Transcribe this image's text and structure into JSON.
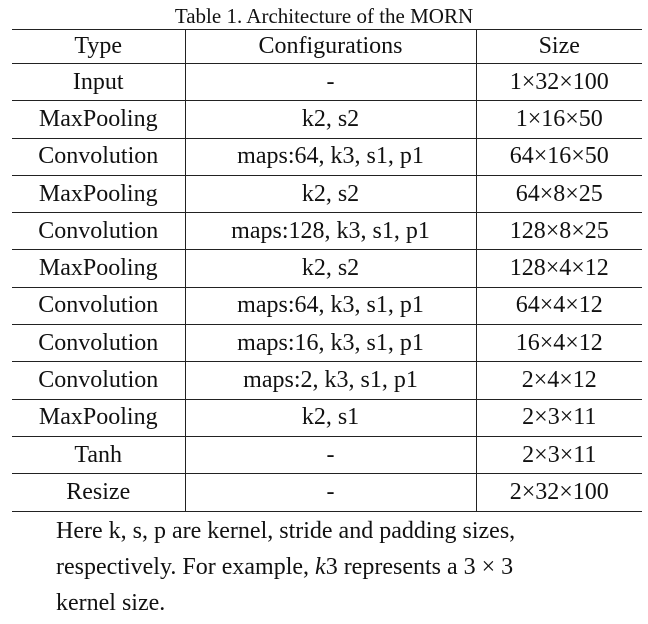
{
  "caption": "Table 1. Architecture of the MORN",
  "columns": [
    "Type",
    "Configurations",
    "Size"
  ],
  "rows": [
    {
      "type": "Input",
      "config": "-",
      "size": "1×32×100"
    },
    {
      "type": "MaxPooling",
      "config": "k2, s2",
      "size": "1×16×50"
    },
    {
      "type": "Convolution",
      "config": "maps:64, k3, s1, p1",
      "size": "64×16×50"
    },
    {
      "type": "MaxPooling",
      "config": "k2, s2",
      "size": "64×8×25"
    },
    {
      "type": "Convolution",
      "config": "maps:128, k3, s1, p1",
      "size": "128×8×25"
    },
    {
      "type": "MaxPooling",
      "config": "k2, s2",
      "size": "128×4×12"
    },
    {
      "type": "Convolution",
      "config": "maps:64, k3, s1, p1",
      "size": "64×4×12"
    },
    {
      "type": "Convolution",
      "config": "maps:16, k3, s1, p1",
      "size": "16×4×12"
    },
    {
      "type": "Convolution",
      "config": "maps:2, k3, s1, p1",
      "size": "2×4×12"
    },
    {
      "type": "MaxPooling",
      "config": "k2, s1",
      "size": "2×3×11"
    },
    {
      "type": "Tanh",
      "config": "-",
      "size": "2×3×11"
    },
    {
      "type": "Resize",
      "config": "-",
      "size": "2×32×100"
    }
  ],
  "note": {
    "line1": "Here k, s, p are kernel, stride and padding sizes,",
    "line2_a": "respectively.  For example, ",
    "line2_math": "k",
    "line2_b": "3 represents a 3 × 3",
    "line3": "kernel size."
  }
}
